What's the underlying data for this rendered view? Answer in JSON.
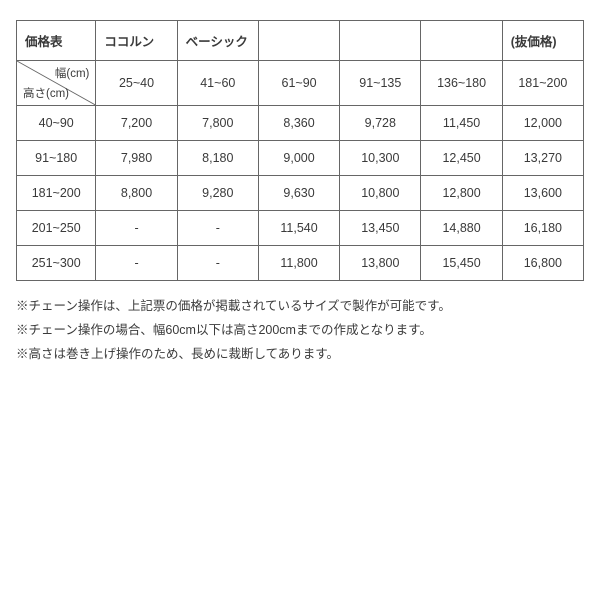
{
  "header": {
    "title": "価格表",
    "col2": "ココルン",
    "col3": "ベーシック",
    "col4": "",
    "col5": "",
    "col6": "",
    "col7": "(抜価格)"
  },
  "diag": {
    "top": "幅(cm)",
    "bottom": "高さ(cm)"
  },
  "widths": [
    "25~40",
    "41~60",
    "61~90",
    "91~135",
    "136~180",
    "181~200"
  ],
  "rows": [
    {
      "h": "40~90",
      "v": [
        "7,200",
        "7,800",
        "8,360",
        "9,728",
        "11,450",
        "12,000"
      ]
    },
    {
      "h": "91~180",
      "v": [
        "7,980",
        "8,180",
        "9,000",
        "10,300",
        "12,450",
        "13,270"
      ]
    },
    {
      "h": "181~200",
      "v": [
        "8,800",
        "9,280",
        "9,630",
        "10,800",
        "12,800",
        "13,600"
      ]
    },
    {
      "h": "201~250",
      "v": [
        "-",
        "-",
        "11,540",
        "13,450",
        "14,880",
        "16,180"
      ]
    },
    {
      "h": "251~300",
      "v": [
        "-",
        "-",
        "11,800",
        "13,800",
        "15,450",
        "16,800"
      ]
    }
  ],
  "notes": [
    "※チェーン操作は、上記票の価格が掲載されているサイズで製作が可能です。",
    "※チェーン操作の場合、幅60cm以下は高さ200cmまでの作成となります。",
    "※高さは巻き上げ操作のため、長めに裁断してあります。"
  ]
}
